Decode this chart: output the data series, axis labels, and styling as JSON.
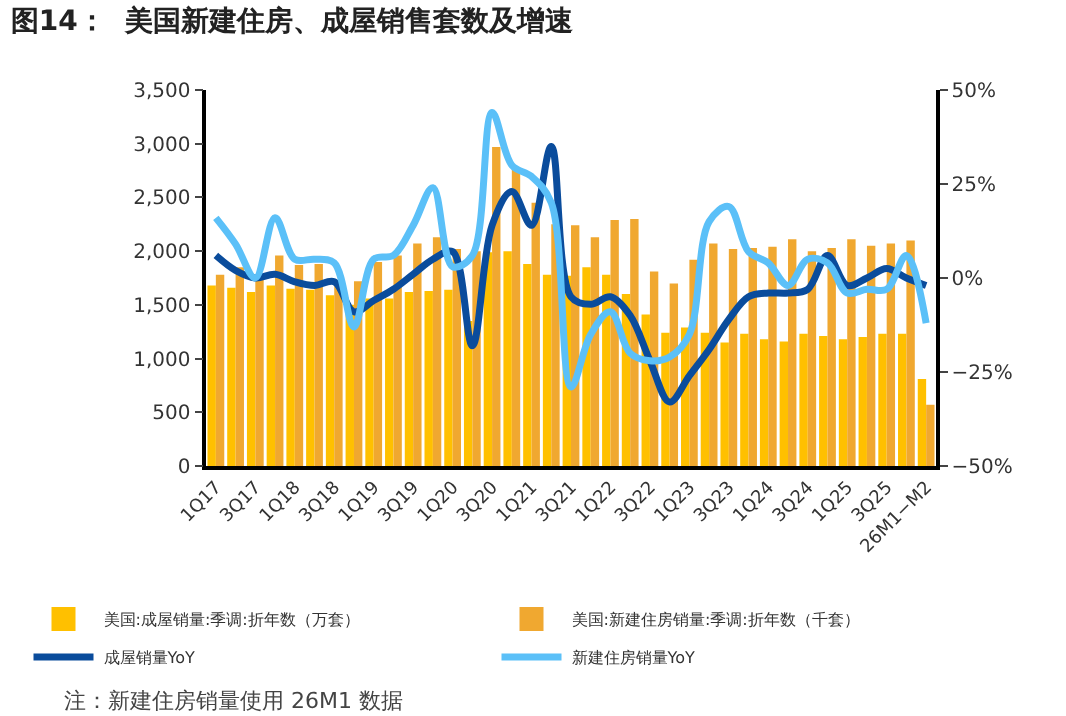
{
  "chart_data": {
    "type": "bar",
    "title": "图14：  美国新建住房、成屋销售套数及增速",
    "categories": [
      "1Q17",
      null,
      "3Q17",
      null,
      "1Q18",
      null,
      "3Q18",
      null,
      "1Q19",
      null,
      "3Q19",
      null,
      "1Q20",
      null,
      "3Q20",
      null,
      "1Q21",
      null,
      "3Q21",
      null,
      "1Q22",
      null,
      "3Q22",
      null,
      "1Q23",
      null,
      "3Q23",
      null,
      "1Q24",
      null,
      "3Q24",
      null,
      "1Q25",
      null,
      "3Q25",
      null,
      "26M1−M2"
    ],
    "series": [
      {
        "name": "美国:成屋销量:季调:折年数（万套）",
        "color": "#ffc000",
        "values": [
          1680,
          1660,
          1620,
          1680,
          1650,
          1640,
          1590,
          1500,
          1560,
          1560,
          1620,
          1630,
          1640,
          1350,
          1990,
          2000,
          1880,
          1780,
          1770,
          1850,
          1780,
          1600,
          1410,
          1240,
          1290,
          1240,
          1150,
          1230,
          1180,
          1160,
          1230,
          1210,
          1180,
          1200,
          1230,
          1230,
          810
        ]
      },
      {
        "name": "美国:新建住房销量:季调:折年数（千套）",
        "color": "#f0a830",
        "values": [
          1780,
          1850,
          1760,
          1960,
          1870,
          1880,
          1700,
          1720,
          1900,
          1960,
          2070,
          2130,
          2020,
          2000,
          2970,
          2780,
          2450,
          2250,
          2240,
          2130,
          2290,
          2300,
          1810,
          1700,
          1920,
          2070,
          2020,
          2030,
          2040,
          2110,
          2000,
          2030,
          2110,
          2050,
          2070,
          2100,
          570
        ]
      },
      {
        "name": "成屋销量YoY",
        "type": "line",
        "axis": "y2",
        "color": "#0a4c9c",
        "values": [
          6,
          2,
          0,
          1,
          -1,
          -2,
          -1,
          -9,
          -6,
          -3,
          1,
          5,
          7,
          -18,
          14,
          23,
          14,
          35,
          -5,
          -7,
          -5,
          -10,
          -22,
          -33,
          -26,
          -19,
          -11,
          -5,
          -4,
          -4,
          -3,
          6,
          -2,
          0,
          2.5,
          0,
          -2
        ]
      },
      {
        "name": "新建住房销量YoY",
        "type": "line",
        "axis": "y2",
        "color": "#5bc0f8",
        "values": [
          16,
          9,
          0,
          16,
          5,
          5,
          4,
          -13,
          5,
          6,
          14,
          24,
          3,
          6,
          44,
          30,
          27,
          20,
          -29,
          -15,
          -9,
          -20,
          -22,
          -21,
          -15,
          15,
          19,
          7,
          4,
          -2,
          5,
          4,
          -4,
          -3,
          -3,
          6,
          -12
        ]
      }
    ],
    "ylim": [
      0,
      3500
    ],
    "yticks": [
      0,
      500,
      {
        "value": 1000,
        "label": "1,000"
      },
      {
        "value": 1500,
        "label": "1,500"
      },
      {
        "value": 2000,
        "label": "2,000"
      },
      {
        "value": 2500,
        "label": "2,500"
      },
      {
        "value": 3000,
        "label": "3,000"
      },
      {
        "value": 3500,
        "label": "3,500"
      }
    ],
    "y2lim": [
      -50,
      50
    ],
    "y2ticks": [
      {
        "value": -50,
        "label": "−50%"
      },
      {
        "value": -25,
        "label": "−25%"
      },
      {
        "value": 0,
        "label": "0%"
      },
      {
        "value": 25,
        "label": "25%"
      },
      {
        "value": 50,
        "label": "50%"
      }
    ],
    "legend": "bottom",
    "marker": "none",
    "line_style": "solid",
    "annotations": [
      "注：新建住房销量使用 26M1 数据"
    ]
  }
}
